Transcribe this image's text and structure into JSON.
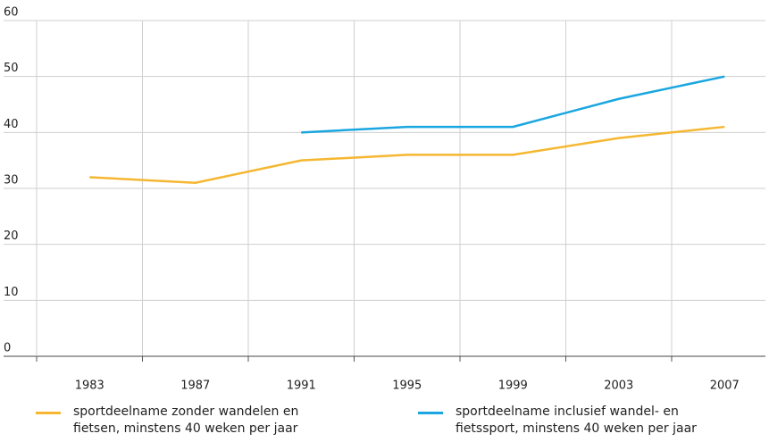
{
  "chart_data": {
    "type": "line",
    "categories": [
      "1983",
      "1987",
      "1991",
      "1995",
      "1999",
      "2003",
      "2007"
    ],
    "series": [
      {
        "name": "sportdeelname zonder wandelen en fietsen, minstens 40 weken per jaar",
        "color": "#f5b731",
        "values": [
          32,
          31,
          35,
          36,
          36,
          39,
          41
        ]
      },
      {
        "name": "sportdeelname inclusief wandel- en fietssport, minstens 40 weken per jaar",
        "color": "#1aa6e0",
        "values": [
          null,
          null,
          40,
          41,
          41,
          46,
          50
        ]
      }
    ],
    "ylim": [
      0,
      60
    ],
    "yticks": [
      0,
      10,
      20,
      30,
      40,
      50,
      60
    ],
    "grid": true
  }
}
